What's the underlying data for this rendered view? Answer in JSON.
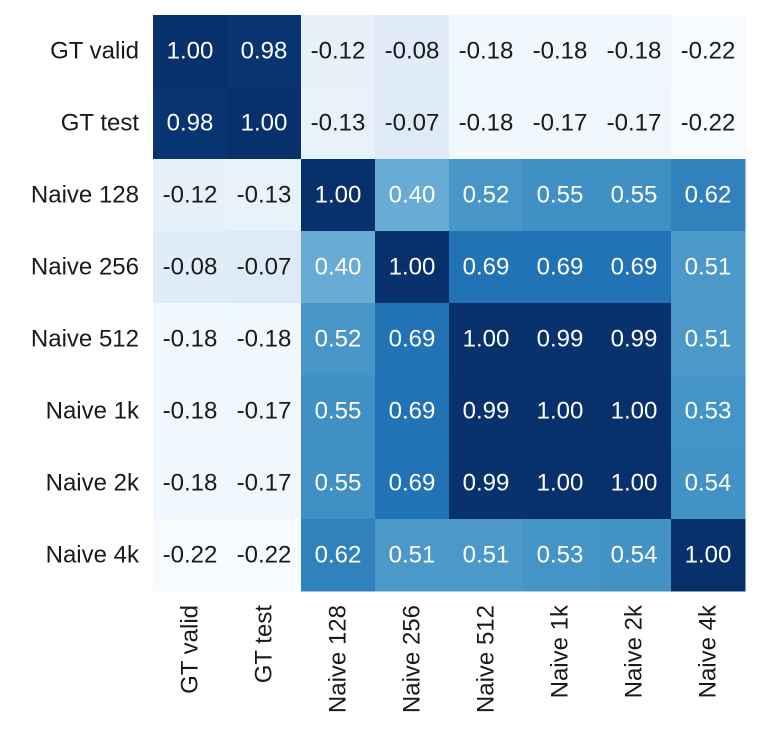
{
  "chart_data": {
    "type": "heatmap",
    "title": "",
    "row_labels": [
      "GT valid",
      "GT test",
      "Naive 128",
      "Naive 256",
      "Naive 512",
      "Naive 1k",
      "Naive 2k",
      "Naive 4k"
    ],
    "col_labels": [
      "GT valid",
      "GT test",
      "Naive 128",
      "Naive 256",
      "Naive 512",
      "Naive 1k",
      "Naive 2k",
      "Naive 4k"
    ],
    "values": [
      [
        1.0,
        0.98,
        -0.12,
        -0.08,
        -0.18,
        -0.18,
        -0.18,
        -0.22
      ],
      [
        0.98,
        1.0,
        -0.13,
        -0.07,
        -0.18,
        -0.17,
        -0.17,
        -0.22
      ],
      [
        -0.12,
        -0.13,
        1.0,
        0.4,
        0.52,
        0.55,
        0.55,
        0.62
      ],
      [
        -0.08,
        -0.07,
        0.4,
        1.0,
        0.69,
        0.69,
        0.69,
        0.51
      ],
      [
        -0.18,
        -0.18,
        0.52,
        0.69,
        1.0,
        0.99,
        0.99,
        0.51
      ],
      [
        -0.18,
        -0.17,
        0.55,
        0.69,
        0.99,
        1.0,
        1.0,
        0.53
      ],
      [
        -0.18,
        -0.17,
        0.55,
        0.69,
        0.99,
        1.0,
        1.0,
        0.54
      ],
      [
        -0.22,
        -0.22,
        0.62,
        0.51,
        0.51,
        0.53,
        0.54,
        1.0
      ]
    ],
    "value_labels": [
      [
        "1.00",
        "0.98",
        "-0.12",
        "-0.08",
        "-0.18",
        "-0.18",
        "-0.18",
        "-0.22"
      ],
      [
        "0.98",
        "1.00",
        "-0.13",
        "-0.07",
        "-0.18",
        "-0.17",
        "-0.17",
        "-0.22"
      ],
      [
        "-0.12",
        "-0.13",
        "1.00",
        "0.40",
        "0.52",
        "0.55",
        "0.55",
        "0.62"
      ],
      [
        "-0.08",
        "-0.07",
        "0.40",
        "1.00",
        "0.69",
        "0.69",
        "0.69",
        "0.51"
      ],
      [
        "-0.18",
        "-0.18",
        "0.52",
        "0.69",
        "1.00",
        "0.99",
        "0.99",
        "0.51"
      ],
      [
        "-0.18",
        "-0.17",
        "0.55",
        "0.69",
        "0.99",
        "1.00",
        "1.00",
        "0.53"
      ],
      [
        "-0.18",
        "-0.17",
        "0.55",
        "0.69",
        "0.99",
        "1.00",
        "1.00",
        "0.54"
      ],
      [
        "-0.22",
        "-0.22",
        "0.62",
        "0.51",
        "0.51",
        "0.53",
        "0.54",
        "1.00"
      ]
    ],
    "colormap": "Blues",
    "vmin": -0.22,
    "vmax": 1.0,
    "colorbar": false,
    "annotations": true
  },
  "colors": {
    "scale": [
      "#f7fbff",
      "#deebf7",
      "#c6dbef",
      "#9ecae1",
      "#6baed6",
      "#4292c6",
      "#2171b5",
      "#08519c",
      "#08306b"
    ],
    "text_dark": "#1a1a1a",
    "text_light": "#ffffff"
  }
}
